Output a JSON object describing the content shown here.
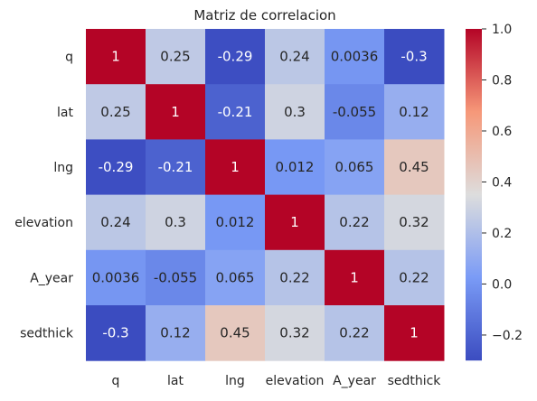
{
  "chart_data": {
    "type": "heatmap",
    "title": "Matriz de correlacion",
    "labels": [
      "q",
      "lat",
      "lng",
      "elevation",
      "A_year",
      "sedthick"
    ],
    "row_labels": [
      "q",
      "lat",
      "lng",
      "elevation",
      "A_year",
      "sedthick"
    ],
    "col_labels": [
      "q",
      "lat",
      "lng",
      "elevation",
      "A_year",
      "sedthick"
    ],
    "matrix": [
      [
        1,
        0.25,
        -0.29,
        0.24,
        0.0036,
        -0.3
      ],
      [
        0.25,
        1,
        -0.21,
        0.3,
        -0.055,
        0.12
      ],
      [
        -0.29,
        -0.21,
        1,
        0.012,
        0.065,
        0.45
      ],
      [
        0.24,
        0.3,
        0.012,
        1,
        0.22,
        0.32
      ],
      [
        0.0036,
        -0.055,
        0.065,
        0.22,
        1,
        0.22
      ],
      [
        -0.3,
        0.12,
        0.45,
        0.32,
        0.22,
        1
      ]
    ],
    "annotations": [
      [
        "1",
        "0.25",
        "-0.29",
        "0.24",
        "0.0036",
        "-0.3"
      ],
      [
        "0.25",
        "1",
        "-0.21",
        "0.3",
        "-0.055",
        "0.12"
      ],
      [
        "-0.29",
        "-0.21",
        "1",
        "0.012",
        "0.065",
        "0.45"
      ],
      [
        "0.24",
        "0.3",
        "0.012",
        "1",
        "0.22",
        "0.32"
      ],
      [
        "0.0036",
        "-0.055",
        "0.065",
        "0.22",
        "1",
        "0.22"
      ],
      [
        "-0.3",
        "0.12",
        "0.45",
        "0.32",
        "0.22",
        "1"
      ]
    ],
    "colormap": "coolwarm",
    "vmin": -0.3,
    "vmax": 1,
    "colorbar_ticks": [
      1.0,
      0.8,
      0.6,
      0.4,
      0.2,
      0.0,
      -0.2
    ],
    "colorbar_tick_labels": [
      "1.0",
      "0.8",
      "0.6",
      "0.4",
      "0.2",
      "0.0",
      "−0.2"
    ],
    "grid": false,
    "colors": {
      "low": "#3b4cc0",
      "mid": "#dddddd",
      "high": "#b40426",
      "text_dark": "#262626",
      "text_light": "#ffffff"
    }
  }
}
